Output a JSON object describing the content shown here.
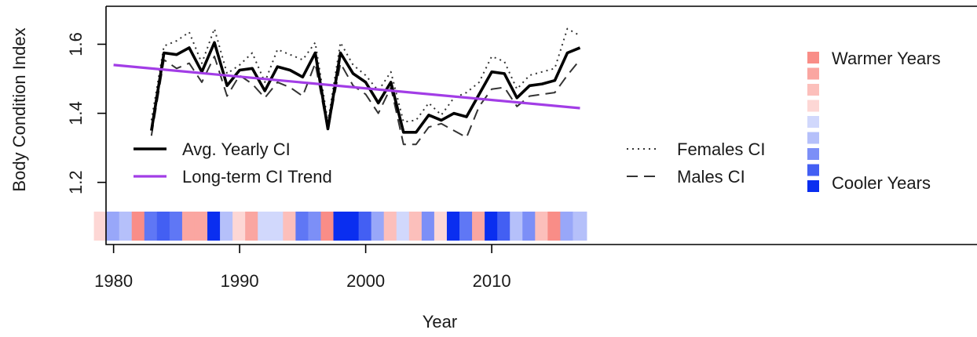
{
  "chart_data": {
    "type": "line",
    "xlabel": "Year",
    "ylabel": "Body Condition Index",
    "xlim": [
      1979.4,
      2048.5
    ],
    "ylim": [
      1.02,
      1.71
    ],
    "x_ticks": [
      1980,
      1990,
      2000,
      2010
    ],
    "y_ticks": [
      1.2,
      1.4,
      1.6
    ],
    "y_tick_labels": [
      "1.2",
      "1.4",
      "1.6"
    ],
    "colors": {
      "avg": "#000000",
      "trend": "#a23de6",
      "females": "#333333",
      "males": "#333333",
      "warm_strong": "#f42a1f",
      "cool_strong": "#0a2ef0"
    },
    "series": [
      {
        "name": "Avg. Yearly CI",
        "style": "solid",
        "x": [
          1983,
          1984,
          1985,
          1986,
          1987,
          1988,
          1989,
          1990,
          1991,
          1992,
          1993,
          1994,
          1995,
          1996,
          1997,
          1998,
          1999,
          2000,
          2001,
          2002,
          2003,
          2004,
          2005,
          2006,
          2007,
          2008,
          2009,
          2010,
          2011,
          2012,
          2013,
          2014,
          2015,
          2016,
          2017
        ],
        "y": [
          1.35,
          1.575,
          1.57,
          1.59,
          1.52,
          1.605,
          1.48,
          1.525,
          1.53,
          1.465,
          1.535,
          1.525,
          1.505,
          1.575,
          1.355,
          1.575,
          1.515,
          1.49,
          1.43,
          1.49,
          1.345,
          1.345,
          1.395,
          1.38,
          1.4,
          1.39,
          1.455,
          1.52,
          1.515,
          1.445,
          1.48,
          1.485,
          1.495,
          1.575,
          1.59
        ]
      },
      {
        "name": "Females CI",
        "style": "dotted",
        "x": [
          1983,
          1984,
          1985,
          1986,
          1987,
          1988,
          1989,
          1990,
          1991,
          1992,
          1993,
          1994,
          1995,
          1996,
          1997,
          1998,
          1999,
          2000,
          2001,
          2002,
          2003,
          2004,
          2005,
          2006,
          2007,
          2008,
          2009,
          2010,
          2011,
          2012,
          2013,
          2014,
          2015,
          2016,
          2017
        ],
        "y": [
          1.38,
          1.595,
          1.61,
          1.635,
          1.545,
          1.645,
          1.515,
          1.54,
          1.575,
          1.49,
          1.585,
          1.57,
          1.555,
          1.605,
          1.375,
          1.605,
          1.54,
          1.51,
          1.465,
          1.52,
          1.375,
          1.38,
          1.43,
          1.395,
          1.445,
          1.46,
          1.49,
          1.565,
          1.55,
          1.47,
          1.51,
          1.52,
          1.53,
          1.645,
          1.625
        ]
      },
      {
        "name": "Males CI",
        "style": "dashed",
        "x": [
          1983,
          1984,
          1985,
          1986,
          1987,
          1988,
          1989,
          1990,
          1991,
          1992,
          1993,
          1994,
          1995,
          1996,
          1997,
          1998,
          1999,
          2000,
          2001,
          2002,
          2003,
          2004,
          2005,
          2006,
          2007,
          2008,
          2009,
          2010,
          2011,
          2012,
          2013,
          2014,
          2015,
          2016,
          2017
        ],
        "y": [
          1.335,
          1.555,
          1.53,
          1.545,
          1.49,
          1.565,
          1.45,
          1.51,
          1.485,
          1.445,
          1.49,
          1.475,
          1.45,
          1.545,
          1.35,
          1.545,
          1.48,
          1.455,
          1.4,
          1.475,
          1.31,
          1.31,
          1.36,
          1.37,
          1.35,
          1.33,
          1.42,
          1.47,
          1.475,
          1.42,
          1.45,
          1.455,
          1.46,
          1.51,
          1.555
        ]
      },
      {
        "name": "Long-term CI Trend",
        "style": "solid",
        "x": [
          1980,
          2017
        ],
        "y": [
          1.54,
          1.415
        ]
      }
    ],
    "temperature_strip": {
      "years": [
        1979,
        1980,
        1981,
        1982,
        1983,
        1984,
        1985,
        1986,
        1987,
        1988,
        1989,
        1990,
        1991,
        1992,
        1993,
        1994,
        1995,
        1996,
        1997,
        1998,
        1999,
        2000,
        2001,
        2002,
        2003,
        2004,
        2005,
        2006,
        2007,
        2008,
        2009,
        2010,
        2011,
        2012,
        2013,
        2014,
        2015,
        2016,
        2017
      ],
      "levels": [
        1,
        -3,
        -2,
        4,
        -5,
        -6,
        -5,
        3,
        3,
        -8,
        -2,
        1,
        3,
        -1,
        -1,
        2,
        -5,
        -4,
        4,
        -8,
        -8,
        -6,
        -3,
        2,
        -1,
        2,
        -4,
        1,
        -8,
        -5,
        3,
        -8,
        -6,
        -2,
        -4,
        2,
        4,
        -3,
        -2
      ]
    },
    "legend_left": [
      "Avg. Yearly CI",
      "Long-term CI Trend"
    ],
    "legend_right": [
      "Females CI",
      "Males CI"
    ],
    "color_key": {
      "warm_label": "Warmer Years",
      "cool_label": "Cooler Years",
      "levels": [
        4,
        3,
        2,
        1,
        -1,
        -2,
        -4,
        -6,
        -8
      ]
    }
  }
}
